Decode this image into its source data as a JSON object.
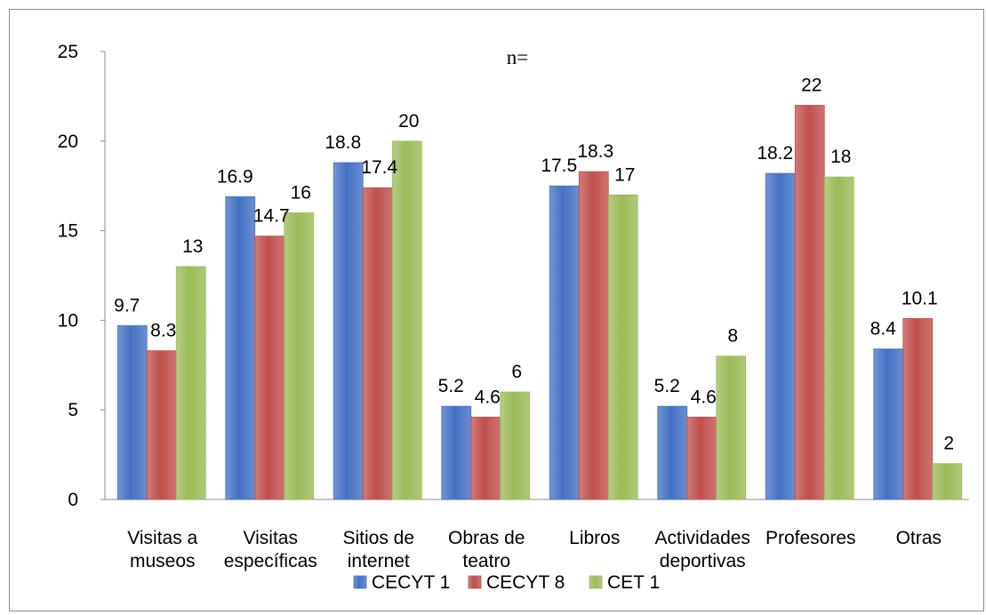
{
  "chart_data": {
    "type": "bar",
    "title": "n=",
    "xlabel": "",
    "ylabel": "",
    "ylim": [
      0,
      25
    ],
    "yticks": [
      0,
      5,
      10,
      15,
      20,
      25
    ],
    "grid": false,
    "legend_position": "bottom",
    "categories": [
      [
        "Visitas a",
        "museos"
      ],
      [
        "Visitas",
        "específicas"
      ],
      [
        "Sitios de",
        "internet"
      ],
      [
        "Obras de",
        "teatro"
      ],
      [
        "Libros"
      ],
      [
        "Actividades",
        "deportivas"
      ],
      [
        "Profesores"
      ],
      [
        "Otras"
      ]
    ],
    "series": [
      {
        "name": "CECYT 1",
        "color": "#4472c4",
        "values": [
          9.7,
          16.9,
          18.8,
          5.2,
          17.5,
          5.2,
          18.2,
          8.4
        ]
      },
      {
        "name": "CECYT 8",
        "color": "#c0504d",
        "values": [
          8.3,
          14.7,
          17.4,
          4.6,
          18.3,
          4.6,
          22,
          10.1
        ]
      },
      {
        "name": "CET 1",
        "color": "#9bbb59",
        "values": [
          13,
          16,
          20,
          6,
          17,
          8,
          18,
          2
        ]
      }
    ]
  }
}
